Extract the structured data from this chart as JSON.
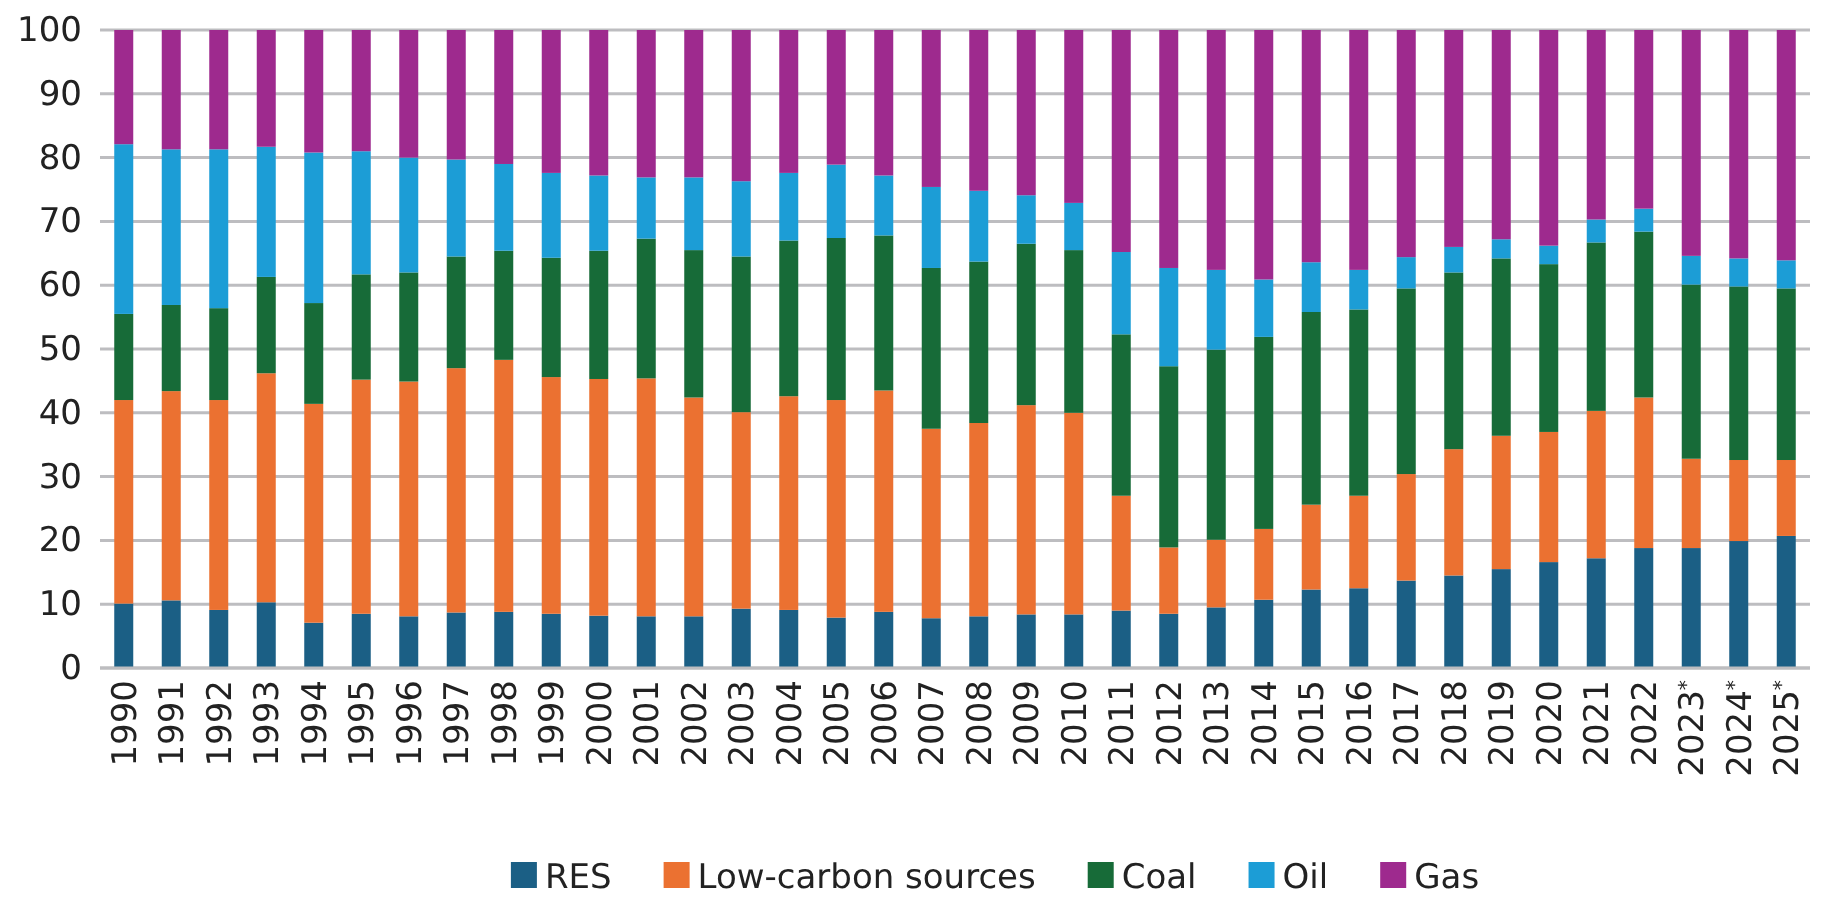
{
  "chart_data": {
    "type": "bar",
    "stacked": true,
    "categories": [
      "1990",
      "1991",
      "1992",
      "1993",
      "1994",
      "1995",
      "1996",
      "1997",
      "1998",
      "1999",
      "2000",
      "2001",
      "2002",
      "2003",
      "2004",
      "2005",
      "2006",
      "2007",
      "2008",
      "2009",
      "2010",
      "2011",
      "2012",
      "2013",
      "2014",
      "2015",
      "2016",
      "2017",
      "2018",
      "2019",
      "2020",
      "2021",
      "2022",
      "2023$^{*}$",
      "2024$^{*}$",
      "2025$^{*}$"
    ],
    "ylim": [
      0,
      100
    ],
    "yticks": [
      0,
      10,
      20,
      30,
      40,
      50,
      60,
      70,
      80,
      90,
      100
    ],
    "grid": "y",
    "legend": "bottom",
    "series": [
      {
        "name": "RES",
        "color": "#1b5f85",
        "values": [
          10.1,
          10.6,
          9.1,
          10.3,
          7.1,
          8.5,
          8.1,
          8.7,
          8.8,
          8.5,
          8.2,
          8.1,
          8.1,
          9.3,
          9.1,
          7.9,
          8.8,
          7.8,
          8.1,
          8.4,
          8.4,
          9.0,
          8.5,
          9.5,
          10.7,
          12.3,
          12.5,
          13.7,
          14.5,
          15.5,
          16.6,
          17.2,
          18.8,
          18.8,
          19.9,
          20.7
        ]
      },
      {
        "name": "Low-carbon sources",
        "color": "#eb7131",
        "values": [
          31.9,
          32.8,
          32.9,
          35.9,
          34.3,
          36.7,
          36.8,
          38.3,
          39.5,
          37.1,
          37.1,
          37.3,
          34.3,
          30.8,
          33.5,
          34.1,
          34.7,
          29.7,
          30.3,
          32.8,
          31.6,
          18.0,
          10.4,
          10.6,
          11.1,
          13.3,
          14.5,
          16.7,
          19.8,
          20.9,
          20.4,
          23.1,
          23.6,
          14.0,
          12.7,
          11.9
        ]
      },
      {
        "name": "Coal",
        "color": "#176b38",
        "values": [
          13.5,
          13.5,
          14.4,
          15.1,
          15.8,
          16.5,
          17.1,
          17.5,
          17.1,
          18.7,
          20.1,
          21.9,
          23.1,
          24.4,
          24.4,
          25.4,
          24.3,
          25.2,
          25.3,
          25.3,
          25.5,
          25.3,
          28.4,
          29.8,
          30.1,
          30.2,
          29.2,
          29.1,
          27.7,
          27.8,
          26.3,
          26.4,
          26.0,
          27.3,
          27.2,
          26.9
        ]
      },
      {
        "name": "Oil",
        "color": "#1c9dd6",
        "values": [
          26.6,
          24.4,
          24.9,
          20.4,
          23.6,
          19.3,
          18.0,
          15.2,
          13.6,
          13.3,
          11.8,
          9.6,
          11.4,
          11.8,
          10.6,
          11.5,
          9.4,
          12.7,
          11.1,
          7.6,
          7.4,
          12.9,
          15.4,
          12.5,
          9.0,
          7.8,
          6.2,
          4.9,
          4.0,
          3.0,
          2.9,
          3.6,
          3.6,
          4.5,
          4.4,
          4.4
        ]
      },
      {
        "name": "Gas",
        "color": "#9e2a8e",
        "values": [
          17.9,
          18.7,
          18.7,
          18.3,
          19.2,
          19.0,
          20.0,
          20.3,
          21.0,
          22.4,
          22.8,
          23.1,
          23.1,
          23.7,
          22.4,
          21.1,
          22.8,
          24.6,
          25.2,
          25.9,
          27.1,
          34.8,
          37.3,
          37.6,
          39.1,
          36.4,
          37.6,
          35.6,
          34.0,
          32.8,
          33.8,
          29.7,
          28.0,
          35.4,
          35.8,
          36.1
        ]
      }
    ]
  }
}
